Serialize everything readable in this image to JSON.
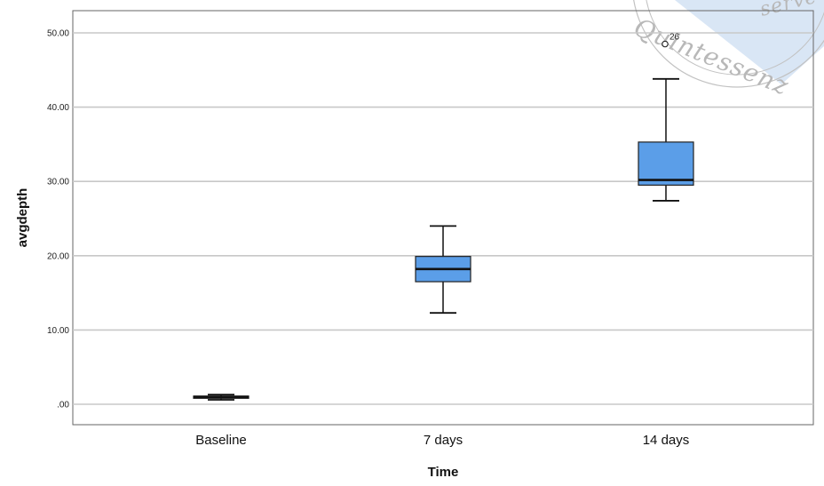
{
  "chart_data": {
    "type": "boxplot",
    "xlabel": "Time",
    "ylabel": "avgdepth",
    "ylim": [
      0,
      50
    ],
    "y_ticks": [
      {
        "value": 0,
        "label": ".00"
      },
      {
        "value": 10,
        "label": "10.00"
      },
      {
        "value": 20,
        "label": "20.00"
      },
      {
        "value": 30,
        "label": "30.00"
      },
      {
        "value": 40,
        "label": "40.00"
      },
      {
        "value": 50,
        "label": "50.00"
      }
    ],
    "grid": "horizontal",
    "box_color": "#5b9ee8",
    "categories": [
      "Baseline",
      "7 days",
      "14 days"
    ],
    "boxes": [
      {
        "category": "Baseline",
        "min": 0.6,
        "q1": 0.8,
        "median": 1.0,
        "q3": 1.1,
        "max": 1.3
      },
      {
        "category": "7 days",
        "min": 12.3,
        "q1": 16.5,
        "median": 18.2,
        "q3": 19.9,
        "max": 24.0
      },
      {
        "category": "14 days",
        "min": 27.4,
        "q1": 29.5,
        "median": 30.2,
        "q3": 35.3,
        "max": 43.8
      }
    ],
    "outliers": [
      {
        "category": "14 days",
        "value": 48.5,
        "label": "26"
      }
    ]
  },
  "watermark": {
    "text": "Quintessenz",
    "partial_text": "serve",
    "color": "#b8b8b8",
    "band_color": "#cfe0f2"
  }
}
